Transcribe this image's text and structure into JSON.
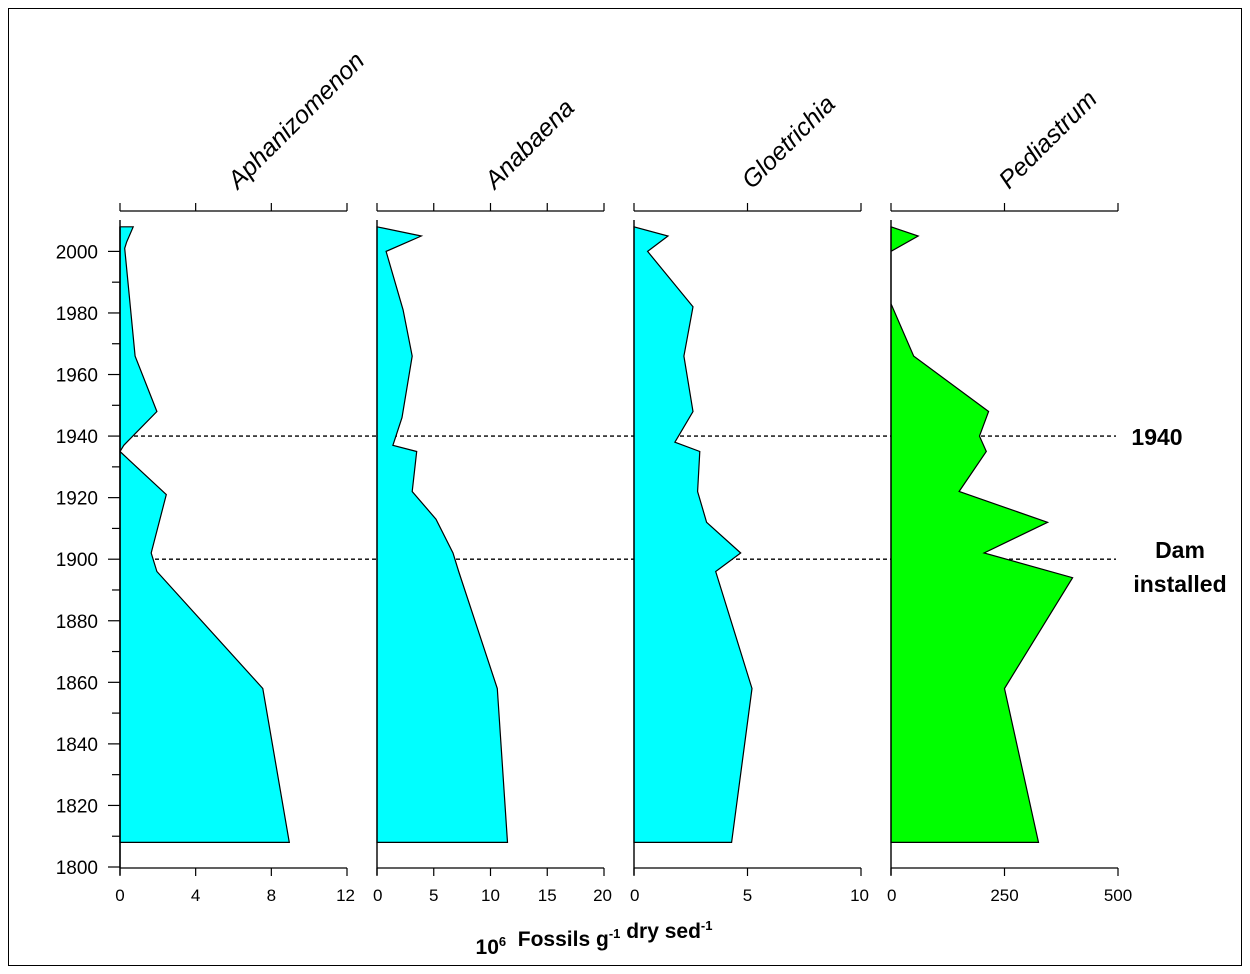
{
  "chart_data": {
    "type": "area",
    "orientation": "stratigraphic",
    "xlabel_parts": {
      "base": "10",
      "exp1": "6",
      "mid": "  Fossils g",
      "exp2": "-1",
      "tail": " dry sed",
      "exp3": "-1"
    },
    "y_axis": {
      "ylim": [
        1800,
        2010
      ],
      "ticks": [
        1800,
        1820,
        1840,
        1860,
        1880,
        1900,
        1920,
        1940,
        1960,
        1980,
        2000
      ]
    },
    "annotations": [
      {
        "year": 1940,
        "lines": [
          "1940"
        ]
      },
      {
        "year": 1900,
        "lines": [
          "Dam",
          "installed"
        ]
      }
    ],
    "panels": [
      {
        "name": "Aphanizomenon",
        "color": "#00ffff",
        "xlim": [
          0,
          12
        ],
        "ticks": [
          0,
          4,
          8,
          12
        ],
        "tick_labels": [
          "0",
          "4",
          "8",
          "12"
        ],
        "points": [
          [
            0.7,
            2008
          ],
          [
            0.35,
            2003
          ],
          [
            0.25,
            2001
          ],
          [
            0.8,
            1966
          ],
          [
            1.95,
            1948
          ],
          [
            0.2,
            1937
          ],
          [
            0,
            1935
          ],
          [
            2.45,
            1921
          ],
          [
            1.65,
            1902
          ],
          [
            1.95,
            1896
          ],
          [
            7.55,
            1858
          ],
          [
            8.95,
            1808
          ]
        ],
        "base": [
          1808,
          2008
        ]
      },
      {
        "name": "Anabaena",
        "color": "#00ffff",
        "xlim": [
          0,
          20
        ],
        "ticks": [
          0,
          5,
          10,
          15,
          20
        ],
        "tick_labels": [
          "0",
          "5",
          "10",
          "15",
          "20"
        ],
        "points": [
          [
            3.9,
            2005
          ],
          [
            0.8,
            2000
          ],
          [
            2.3,
            1981
          ],
          [
            3.1,
            1966
          ],
          [
            2.2,
            1946
          ],
          [
            1.4,
            1937
          ],
          [
            3.5,
            1935
          ],
          [
            3.1,
            1922
          ],
          [
            5.2,
            1913
          ],
          [
            6.7,
            1902
          ],
          [
            7.2,
            1896
          ],
          [
            10.6,
            1858
          ],
          [
            11.5,
            1808
          ]
        ],
        "base": [
          1808,
          2008
        ]
      },
      {
        "name": "Gloetrichia",
        "color": "#00ffff",
        "xlim": [
          0,
          10
        ],
        "ticks": [
          0,
          5,
          10
        ],
        "tick_labels": [
          "0",
          "5",
          "10"
        ],
        "points": [
          [
            1.5,
            2005
          ],
          [
            0.6,
            2000
          ],
          [
            2.6,
            1982
          ],
          [
            2.2,
            1966
          ],
          [
            2.6,
            1948
          ],
          [
            1.8,
            1938
          ],
          [
            2.9,
            1935
          ],
          [
            2.8,
            1922
          ],
          [
            3.2,
            1912
          ],
          [
            4.7,
            1902
          ],
          [
            3.6,
            1896
          ],
          [
            5.2,
            1858
          ],
          [
            4.3,
            1808
          ]
        ],
        "base": [
          1808,
          2008
        ]
      },
      {
        "name": "Pediastrum",
        "color": "#00ff00",
        "xlim": [
          0,
          500
        ],
        "ticks": [
          0,
          250,
          500
        ],
        "tick_labels": [
          "0",
          "250",
          "500"
        ],
        "points": [
          [
            0,
            2008
          ],
          [
            60,
            2005
          ],
          [
            0,
            2000
          ],
          [
            0,
            1983
          ],
          [
            50,
            1966
          ],
          [
            215,
            1948
          ],
          [
            195,
            1940
          ],
          [
            210,
            1935
          ],
          [
            150,
            1922
          ],
          [
            345,
            1912
          ],
          [
            205,
            1902
          ],
          [
            400,
            1894
          ],
          [
            250,
            1858
          ],
          [
            325,
            1808
          ]
        ],
        "base": [
          1808,
          2008
        ]
      }
    ]
  }
}
